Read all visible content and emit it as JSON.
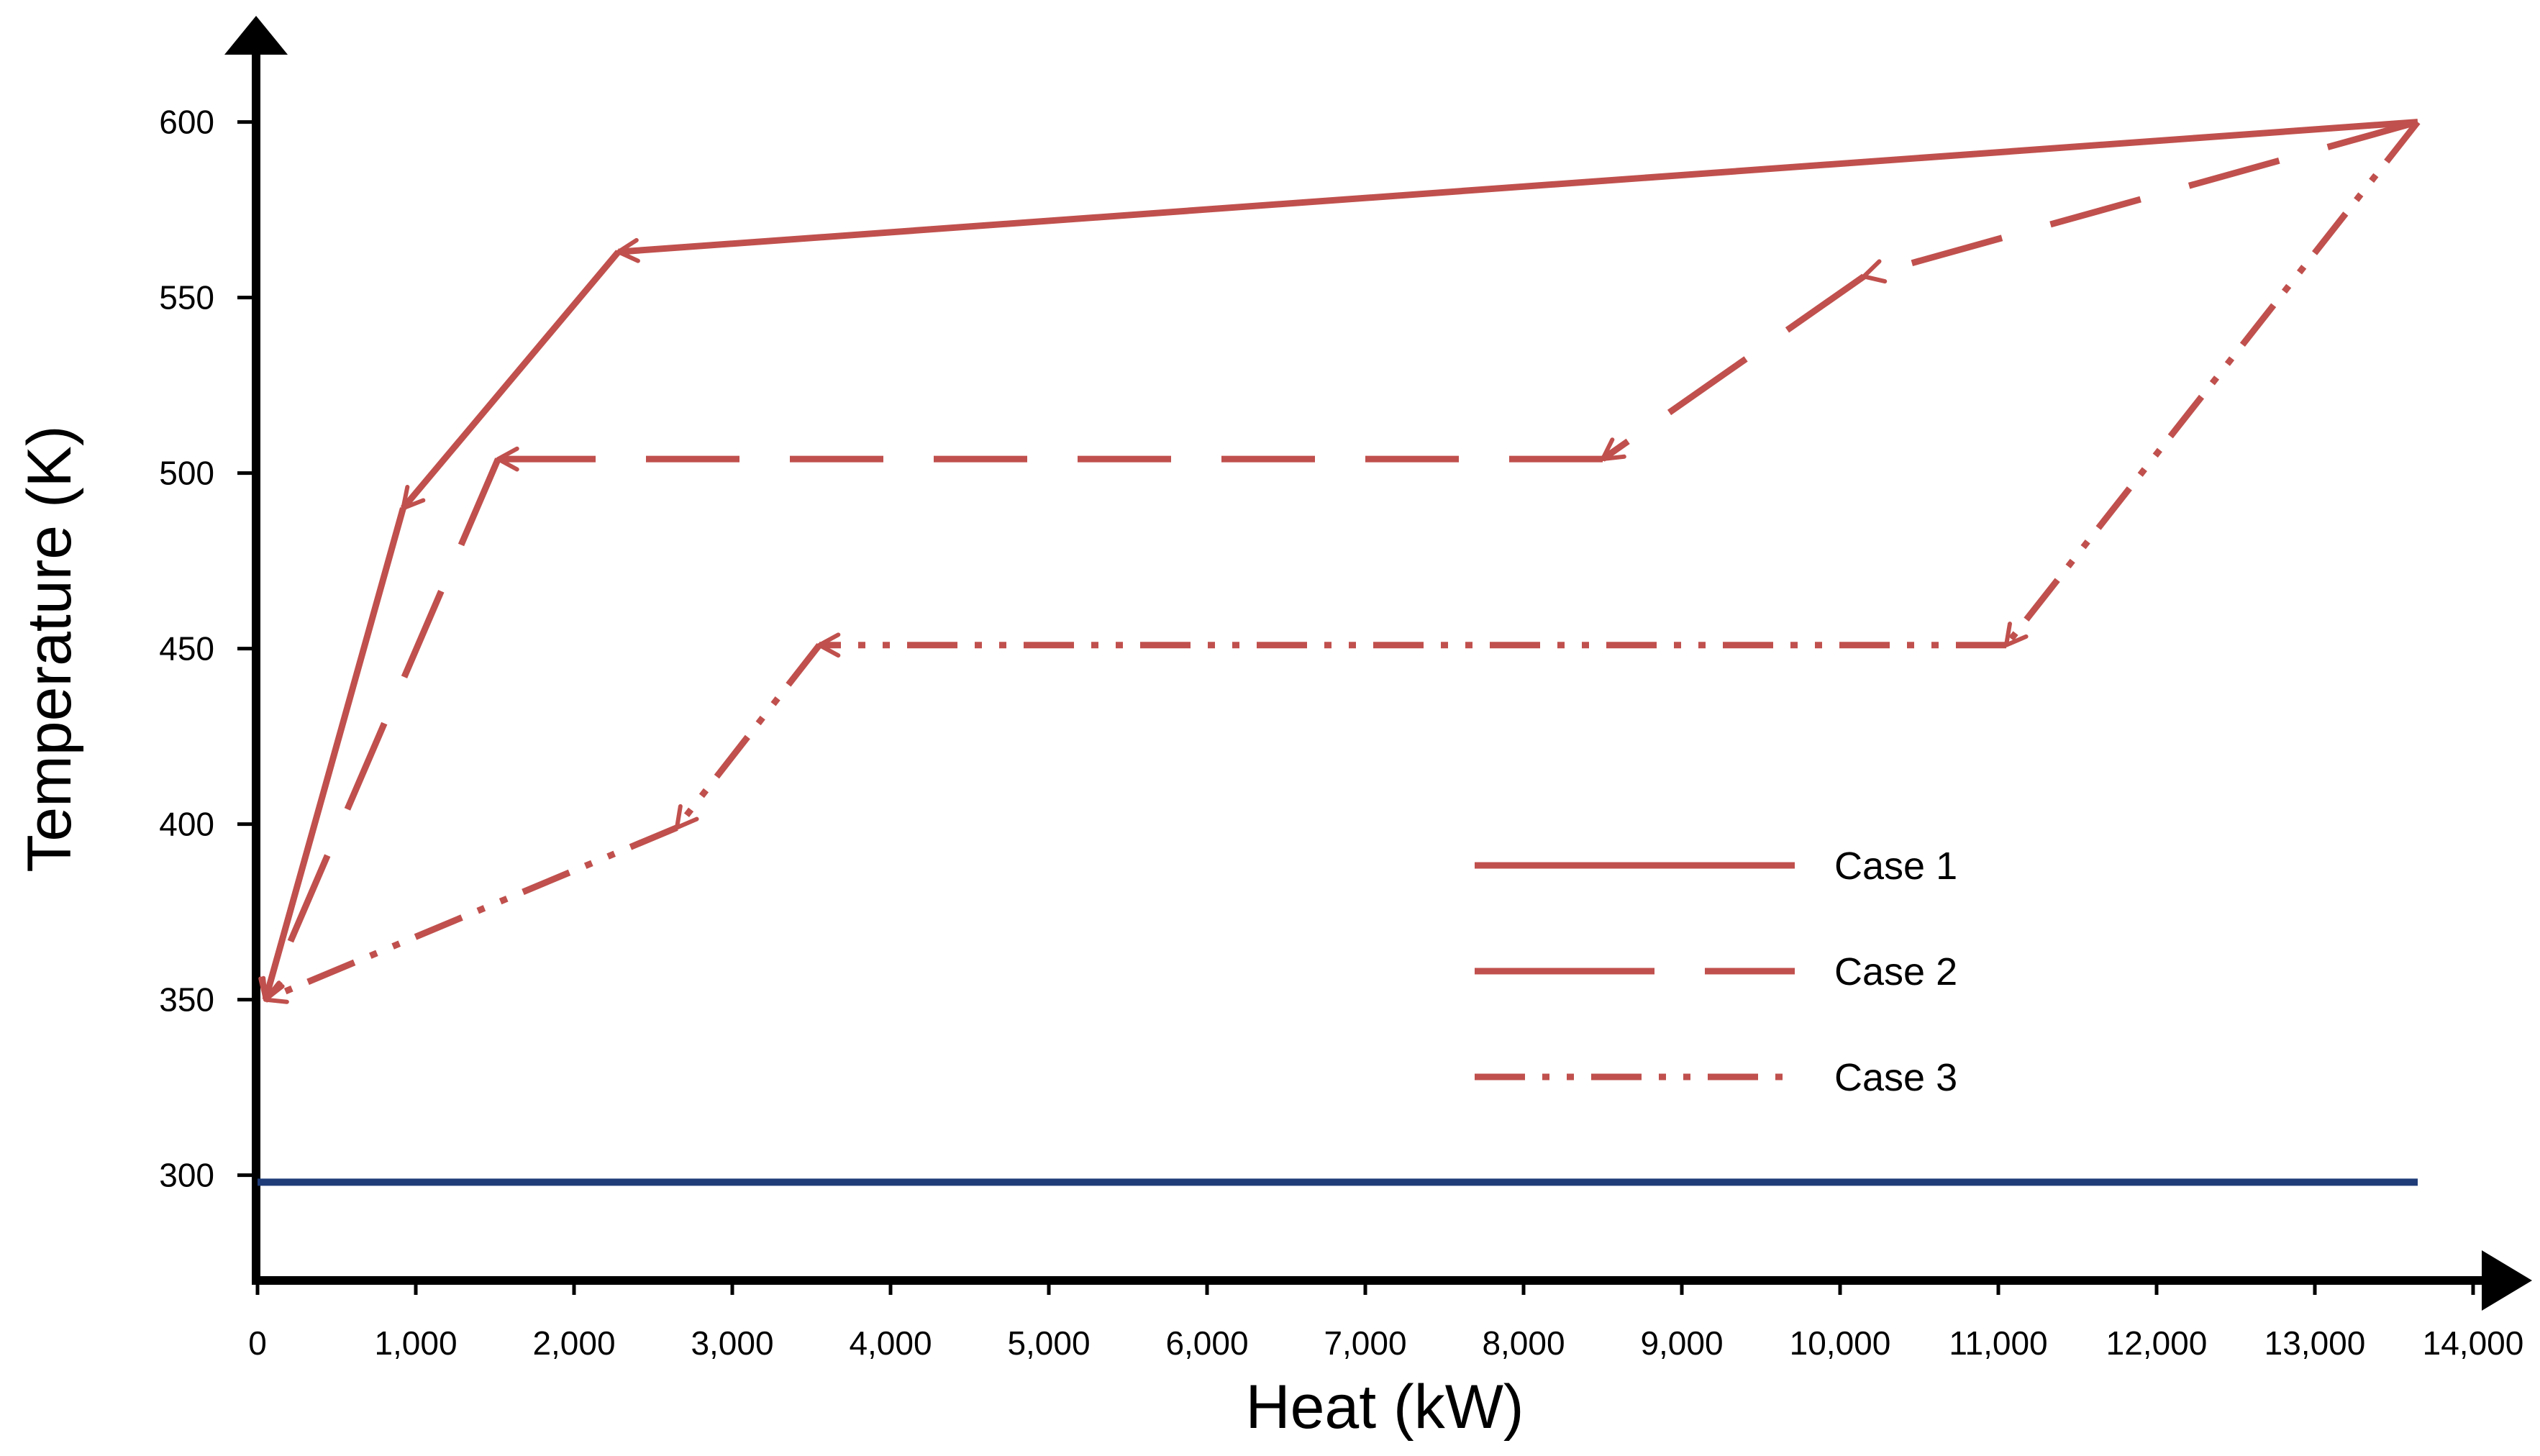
{
  "chart_data": {
    "type": "line",
    "title": "",
    "xlabel": "Heat (kW)",
    "ylabel": "Temperature (K)",
    "xlim": [
      0,
      14000
    ],
    "ylim": [
      270,
      620
    ],
    "x_ticks": [
      {
        "value": 0,
        "label": "0"
      },
      {
        "value": 1000,
        "label": "1,000"
      },
      {
        "value": 2000,
        "label": "2,000"
      },
      {
        "value": 3000,
        "label": "3,000"
      },
      {
        "value": 4000,
        "label": "4,000"
      },
      {
        "value": 5000,
        "label": "5,000"
      },
      {
        "value": 6000,
        "label": "6,000"
      },
      {
        "value": 7000,
        "label": "7,000"
      },
      {
        "value": 8000,
        "label": "8,000"
      },
      {
        "value": 9000,
        "label": "9,000"
      },
      {
        "value": 10000,
        "label": "10,000"
      },
      {
        "value": 11000,
        "label": "11,000"
      },
      {
        "value": 12000,
        "label": "12,000"
      },
      {
        "value": 13000,
        "label": "13,000"
      },
      {
        "value": 14000,
        "label": "14,000"
      }
    ],
    "y_ticks": [
      {
        "value": 300,
        "label": "300"
      },
      {
        "value": 350,
        "label": "350"
      },
      {
        "value": 400,
        "label": "400"
      },
      {
        "value": 450,
        "label": "450"
      },
      {
        "value": 500,
        "label": "500"
      },
      {
        "value": 550,
        "label": "550"
      },
      {
        "value": 600,
        "label": "600"
      }
    ],
    "series": [
      {
        "name": "Case 1",
        "style": "solid",
        "color": "#c0504d",
        "x": [
          13650,
          2280,
          920,
          50
        ],
        "y": [
          600,
          563,
          490,
          350
        ]
      },
      {
        "name": "Case 2",
        "style": "dashed",
        "color": "#c0504d",
        "x": [
          13650,
          10150,
          8500,
          1520,
          50
        ],
        "y": [
          600,
          556,
          504,
          504,
          350
        ]
      },
      {
        "name": "Case 3",
        "style": "dash-dot-dot",
        "color": "#c0504d",
        "x": [
          13650,
          11050,
          3550,
          2650,
          50
        ],
        "y": [
          600,
          451,
          451,
          399,
          350
        ]
      },
      {
        "name": "",
        "style": "solid",
        "color": "#1f3c78",
        "x": [
          0,
          13650
        ],
        "y": [
          298,
          298
        ]
      }
    ],
    "legend": {
      "position": "bottom-right",
      "entries": [
        "Case 1",
        "Case 2",
        "Case 3"
      ]
    },
    "grid": false
  }
}
